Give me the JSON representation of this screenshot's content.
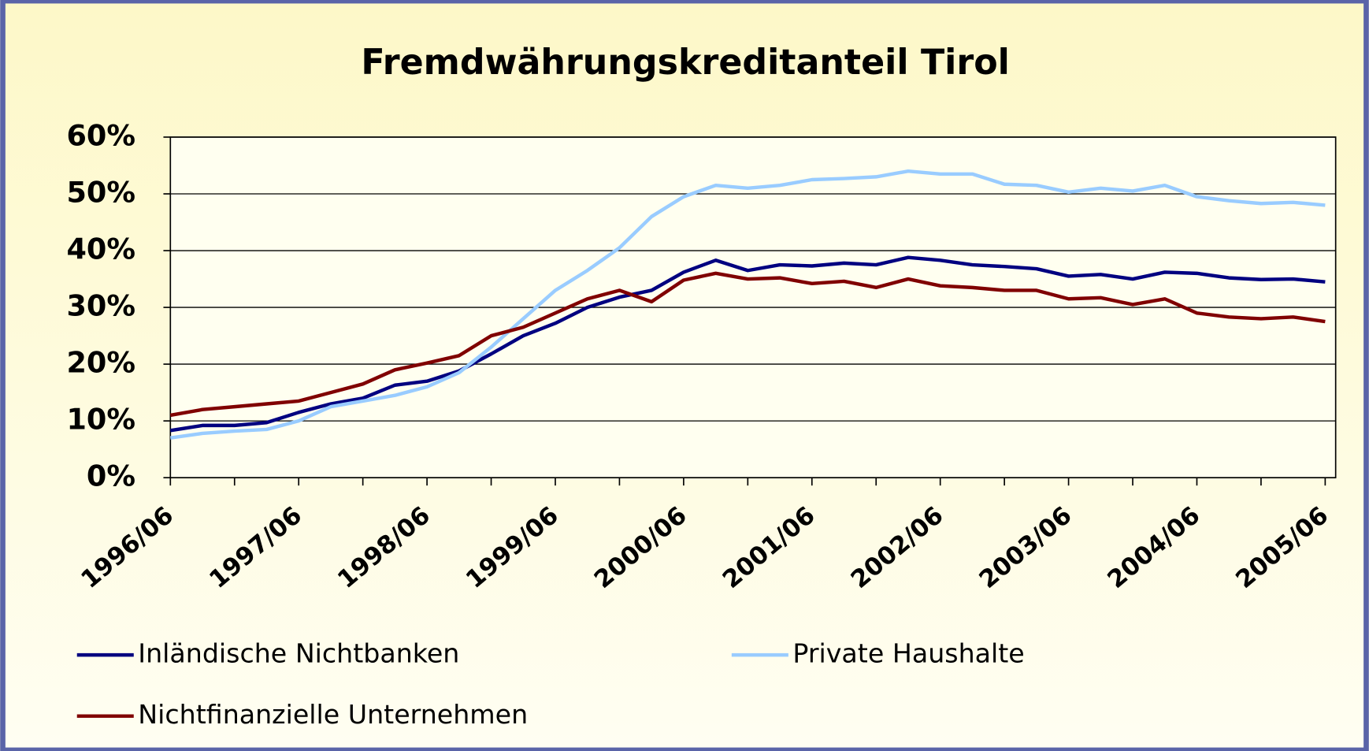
{
  "chart_data": {
    "type": "line",
    "title": "Fremdwährungskreditanteil Tirol",
    "categories": [
      "1996/06",
      null,
      null,
      null,
      "1997/06",
      null,
      null,
      null,
      "1998/06",
      null,
      null,
      null,
      "1999/06",
      null,
      null,
      null,
      "2000/06",
      null,
      null,
      null,
      "2001/06",
      null,
      null,
      null,
      "2002/06",
      null,
      null,
      null,
      "2003/06",
      null,
      null,
      null,
      "2004/06",
      null,
      null,
      null,
      "2005/06"
    ],
    "series": [
      {
        "name": "Inländische Nichtbanken",
        "color": "#000080",
        "values": [
          8.3,
          9.2,
          9.2,
          9.7,
          11.5,
          13,
          14,
          16.3,
          17,
          18.8,
          21.8,
          25,
          27.2,
          30,
          31.8,
          33,
          36.2,
          38.3,
          36.5,
          37.5,
          37.3,
          37.8,
          37.5,
          38.8,
          38.3,
          37.5,
          37.2,
          36.8,
          35.5,
          35.8,
          35,
          36.2,
          36,
          35.2,
          34.9,
          35,
          34.5
        ]
      },
      {
        "name": "Private Haushalte",
        "color": "#99ccff",
        "values": [
          7,
          7.8,
          8.2,
          8.5,
          10,
          12.5,
          13.5,
          14.5,
          16,
          18.5,
          23,
          28,
          33,
          36.5,
          40.5,
          46,
          49.5,
          51.5,
          51,
          51.5,
          52.5,
          52.7,
          53,
          54,
          53.5,
          53.5,
          51.7,
          51.5,
          50.3,
          51,
          50.5,
          51.5,
          49.5,
          48.8,
          48.3,
          48.5,
          48
        ]
      },
      {
        "name": "Nichtfinanzielle Unternehmen",
        "color": "#800000",
        "values": [
          11,
          12,
          12.5,
          13,
          13.5,
          15,
          16.5,
          19,
          20.2,
          21.5,
          25,
          26.5,
          29,
          31.5,
          33,
          31,
          34.8,
          36,
          35,
          35.2,
          34.2,
          34.6,
          33.5,
          35,
          33.8,
          33.5,
          33,
          33,
          31.5,
          31.7,
          30.5,
          31.5,
          29,
          28.3,
          28,
          28.3,
          27.5
        ]
      }
    ],
    "ylim": [
      0,
      60
    ],
    "yticks": [
      {
        "value": 0,
        "label": "0%"
      },
      {
        "value": 10,
        "label": "10%"
      },
      {
        "value": 20,
        "label": "20%"
      },
      {
        "value": 30,
        "label": "30%"
      },
      {
        "value": 40,
        "label": "40%"
      },
      {
        "value": 50,
        "label": "50%"
      },
      {
        "value": 60,
        "label": "60%"
      }
    ],
    "grid": true
  }
}
